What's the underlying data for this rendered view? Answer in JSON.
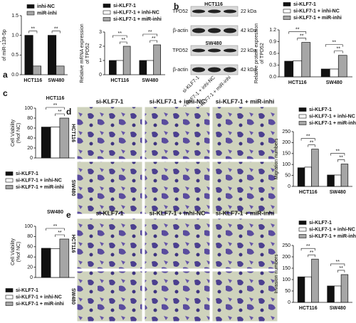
{
  "panel_letters": [
    "a",
    "b",
    "c",
    "d",
    "e"
  ],
  "blots": [
    {
      "cell_line": "HCT116",
      "rows": [
        {
          "protein": "TPD52",
          "size": "22 kDa"
        },
        {
          "protein": "β-actin",
          "size": "42 kDa"
        }
      ]
    },
    {
      "cell_line": "SW480",
      "rows": [
        {
          "protein": "TPD52",
          "size": "22 kDa"
        },
        {
          "protein": "β-actin",
          "size": "42 kDa"
        }
      ]
    }
  ],
  "blot_lanes": [
    "si-KLF7-1",
    "si-KLF7-1 + inhi-NC",
    "si-KLF7-1 + miR-inhi"
  ],
  "micrographs": [
    {
      "columns": [
        "si-KLF7-1",
        "si-KLF7-1 + inhi-NC",
        "si-KLF7-1 + miR-inhi"
      ],
      "rows": [
        "HCT116",
        "SW480"
      ]
    },
    {
      "columns": [
        "si-KLF7-1",
        "si-KLF7-1 + inhi-NC",
        "si-KLF7-1 + miR-inhi"
      ],
      "rows": [
        "HCT116",
        "SW480"
      ]
    }
  ],
  "chart_data": [
    {
      "type": "bar",
      "ylabel": [
        "Relative expression",
        "of miR-139-5p"
      ],
      "categories": [
        "HCT116",
        "SW480"
      ],
      "series": [
        {
          "name": "inhi-NC",
          "color": "#111111",
          "values": [
            1.0,
            1.0
          ]
        },
        {
          "name": "miR-inhi",
          "color": "#a6a6a6",
          "values": [
            0.22,
            0.22
          ]
        }
      ],
      "ylim": [
        0,
        1.5
      ],
      "yticks": [
        {
          "value": 0,
          "label": "0.0"
        },
        0.5,
        {
          "value": 1,
          "label": "1.0"
        },
        1.5
      ],
      "annotations": [
        "**",
        "**"
      ]
    },
    {
      "type": "bar",
      "ylabel": [
        "Relative mRNA expression",
        "of TPD52"
      ],
      "categories": [
        "HCT116",
        "SW480"
      ],
      "series": [
        {
          "name": "si-KLF7-1",
          "color": "#111111",
          "values": [
            1.0,
            1.0
          ]
        },
        {
          "name": "si-KLF7-1 + inhi-NC",
          "color": "#ffffff",
          "values": [
            1.0,
            1.0
          ]
        },
        {
          "name": "si-KLF7-1 + miR-inhi",
          "color": "#a6a6a6",
          "values": [
            2.0,
            2.1
          ]
        }
      ],
      "ylim": [
        0,
        3
      ],
      "yticks": [
        0,
        1,
        2,
        3
      ],
      "annotations": [
        "**",
        "**",
        "**",
        "**"
      ]
    },
    {
      "type": "bar",
      "ylabel": [
        "Relative protein expression",
        "of TPD52"
      ],
      "categories": [
        "HCT116",
        "SW480"
      ],
      "series": [
        {
          "name": "si-KLF7-1",
          "color": "#111111",
          "values": [
            0.4,
            0.2
          ]
        },
        {
          "name": "si-KLF7-1 + inhi-NC",
          "color": "#ffffff",
          "values": [
            0.41,
            0.2
          ]
        },
        {
          "name": "si-KLF7-1 + miR-inhi",
          "color": "#a6a6a6",
          "values": [
            0.88,
            0.55
          ]
        }
      ],
      "ylim": [
        0,
        1.2
      ],
      "yticks": [
        {
          "value": 0,
          "label": "0.0"
        },
        0.3,
        0.6,
        0.9,
        1.2
      ],
      "annotations": [
        "**",
        "**",
        "**",
        "**"
      ]
    },
    {
      "type": "bar",
      "title": "HCT116",
      "ylabel": [
        "Cell Viability",
        "(%of NC)"
      ],
      "categories": [
        null
      ],
      "series": [
        {
          "name": "si-KLF7-1",
          "color": "#111111",
          "values": [
            62
          ]
        },
        {
          "name": "si-KLF7-1 + inhi-NC",
          "color": "#ffffff",
          "values": [
            62
          ]
        },
        {
          "name": "si-KLF7-1 + miR-inhi",
          "color": "#a6a6a6",
          "values": [
            80
          ]
        }
      ],
      "ylim": [
        0,
        100
      ],
      "yticks": [
        0,
        20,
        40,
        60,
        80,
        100
      ],
      "annotations": [
        "**",
        "**"
      ]
    },
    {
      "type": "bar",
      "title": "SW480",
      "ylabel": [
        "Cell Viability",
        "(%of NC)"
      ],
      "categories": [
        null
      ],
      "series": [
        {
          "name": "si-KLF7-1",
          "color": "#111111",
          "values": [
            57
          ]
        },
        {
          "name": "si-KLF7-1 + inhi-NC",
          "color": "#ffffff",
          "values": [
            56
          ]
        },
        {
          "name": "si-KLF7-1 + miR-inhi",
          "color": "#a6a6a6",
          "values": [
            75
          ]
        }
      ],
      "ylim": [
        0,
        100
      ],
      "yticks": [
        0,
        20,
        40,
        60,
        80,
        100
      ],
      "annotations": [
        "**",
        "**"
      ]
    },
    {
      "type": "bar",
      "ylabel": [
        "Migration numbers"
      ],
      "categories": [
        "HCT116",
        "SW480"
      ],
      "series": [
        {
          "name": "si-KLF7-1",
          "color": "#111111",
          "values": [
            85,
            52
          ]
        },
        {
          "name": "si-KLF7-1 + inhi-NC",
          "color": "#ffffff",
          "values": [
            88,
            52
          ]
        },
        {
          "name": "si-KLF7-1 + miR-inhi",
          "color": "#a6a6a6",
          "values": [
            170,
            102
          ]
        }
      ],
      "ylim": [
        0,
        250
      ],
      "yticks": [
        0,
        50,
        100,
        150,
        200,
        250
      ],
      "annotations": [
        "**",
        "**",
        "**",
        "**"
      ]
    },
    {
      "type": "bar",
      "ylabel": [
        "Invasion numbers"
      ],
      "categories": [
        "HCT116",
        "SW480"
      ],
      "series": [
        {
          "name": "si-KLF7-1",
          "color": "#111111",
          "values": [
            112,
            72
          ]
        },
        {
          "name": "si-KLF7-1 + inhi-NC",
          "color": "#ffffff",
          "values": [
            112,
            72
          ]
        },
        {
          "name": "si-KLF7-1 + miR-inhi",
          "color": "#a6a6a6",
          "values": [
            190,
            122
          ]
        }
      ],
      "ylim": [
        0,
        250
      ],
      "yticks": [
        0,
        50,
        100,
        150,
        200,
        250
      ],
      "annotations": [
        "**",
        "**",
        "**",
        "**"
      ]
    }
  ]
}
